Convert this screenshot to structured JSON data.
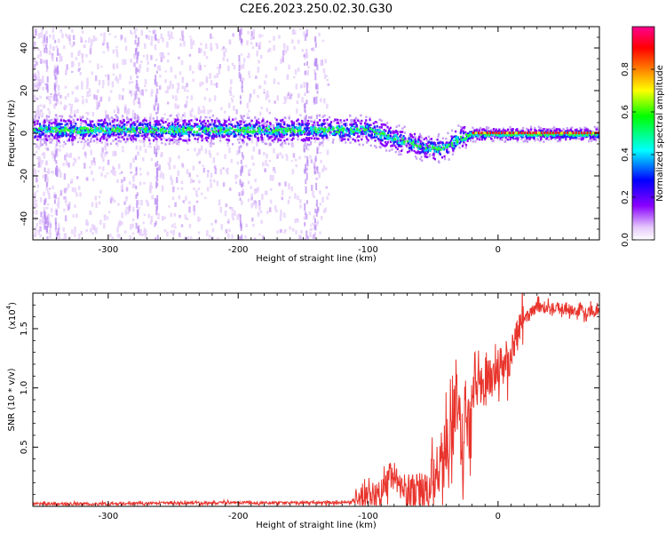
{
  "title": "C2E6.2023.250.02.30.G30",
  "chart_data": [
    {
      "type": "heatmap",
      "xlabel": "Height of straight line (km)",
      "ylabel": "Frequency (Hz)",
      "xlim": [
        -358,
        78
      ],
      "ylim": [
        -50,
        50
      ],
      "xticks": [
        -300,
        -200,
        -100,
        0
      ],
      "yticks": [
        -40,
        -20,
        0,
        20,
        40
      ],
      "colorbar": {
        "label": "Normalized spectral amplitude",
        "range": [
          0,
          1
        ],
        "ticks": [
          "0.0",
          "0.2",
          "0.4",
          "0.6",
          "0.8"
        ]
      },
      "ridge": [
        {
          "x": -358,
          "y": 2
        },
        {
          "x": -300,
          "y": 2
        },
        {
          "x": -250,
          "y": 2
        },
        {
          "x": -200,
          "y": 2
        },
        {
          "x": -150,
          "y": 2
        },
        {
          "x": -120,
          "y": 2
        },
        {
          "x": -100,
          "y": 2
        },
        {
          "x": -90,
          "y": 0
        },
        {
          "x": -70,
          "y": -4
        },
        {
          "x": -50,
          "y": -7
        },
        {
          "x": -40,
          "y": -6
        },
        {
          "x": -30,
          "y": -2
        },
        {
          "x": -20,
          "y": 0
        },
        {
          "x": 0,
          "y": 0
        },
        {
          "x": 40,
          "y": 0
        },
        {
          "x": 78,
          "y": 0
        }
      ]
    },
    {
      "type": "line",
      "xlabel": "Height of straight line (km)",
      "ylabel": "SNR (10 * v/v)",
      "yscale_label": "(x10",
      "yscale_exp": "4",
      "xlim": [
        -358,
        78
      ],
      "ylim": [
        0,
        1.8
      ],
      "xticks": [
        -300,
        -200,
        -100,
        0
      ],
      "yticks": [
        0.5,
        1.0,
        1.5
      ],
      "ytick_labels": [
        "0.5",
        "1.0",
        "1.5"
      ],
      "series": [
        {
          "color": "#e8342c",
          "x": [
            -358,
            -300,
            -250,
            -200,
            -150,
            -120,
            -110,
            -100,
            -95,
            -90,
            -85,
            -80,
            -75,
            -70,
            -65,
            -60,
            -55,
            -50,
            -45,
            -40,
            -35,
            -32,
            -30,
            -28,
            -25,
            -22,
            -20,
            -15,
            -10,
            -5,
            0,
            5,
            10,
            15,
            20,
            25,
            30,
            40,
            50,
            60,
            70,
            78
          ],
          "y": [
            0.02,
            0.02,
            0.03,
            0.03,
            0.03,
            0.03,
            0.04,
            0.06,
            0.08,
            0.12,
            0.2,
            0.3,
            0.15,
            0.1,
            0.08,
            0.1,
            0.12,
            0.2,
            0.35,
            0.45,
            0.6,
            1.0,
            0.8,
            0.55,
            0.8,
            0.7,
            0.9,
            1.05,
            1.1,
            1.1,
            1.15,
            1.2,
            1.3,
            1.45,
            1.55,
            1.65,
            1.68,
            1.68,
            1.67,
            1.66,
            1.65,
            1.65
          ]
        }
      ]
    }
  ]
}
